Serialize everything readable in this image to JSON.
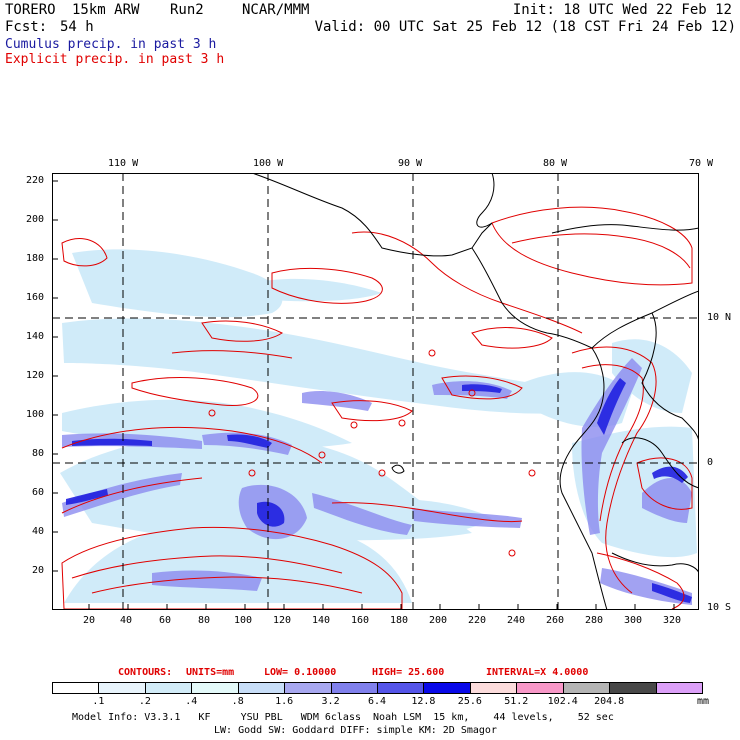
{
  "header": {
    "model_name": "TORERO",
    "resolution": "15km ARW",
    "run": "Run2",
    "org": "NCAR/MMM",
    "init": "Init: 18 UTC Wed 22 Feb 12",
    "fcst_label": "Fcst:",
    "fcst_value": "54 h",
    "valid": "Valid: 00 UTC Sat 25 Feb 12 (18 CST Fri 24 Feb 12)",
    "line_cumulus": "Cumulus precip. in past 3 h",
    "line_explicit": "Explicit precip. in past 3 h"
  },
  "colors": {
    "cumulus_text": "#1a1aa0",
    "explicit_text": "#e00000",
    "contour": "#e00000",
    "precip_light": "#c8e8f8",
    "precip_mid": "#8c8cf0",
    "precip_dark": "#2020e0"
  },
  "map": {
    "top_lon_labels": [
      "110 W",
      "100 W",
      "90 W",
      "80 W",
      "70 W"
    ],
    "right_lat_labels": [
      "10 N",
      "0",
      "10 S"
    ],
    "left_y_ticks": [
      "220",
      "200",
      "180",
      "160",
      "140",
      "120",
      "100",
      "80",
      "60",
      "40",
      "20"
    ],
    "bottom_x_ticks": [
      "20",
      "40",
      "60",
      "80",
      "100",
      "120",
      "140",
      "160",
      "180",
      "200",
      "220",
      "240",
      "260",
      "280",
      "300",
      "320"
    ]
  },
  "contour_info": {
    "contours": "CONTOURS:",
    "units": "UNITS=mm",
    "low": "LOW= 0.10000",
    "high": "HIGH= 25.600",
    "interval": "INTERVAL=X 4.0000"
  },
  "colorbar": {
    "colors": [
      "#ffffff",
      "#e8f4fc",
      "#d2ecf8",
      "#e4fafa",
      "#c8def8",
      "#a8a8f0",
      "#8080ec",
      "#5454e8",
      "#0808e8",
      "#fcdcdc",
      "#f898c8",
      "#b4b4b4",
      "#484848",
      "#dca0f8"
    ],
    "labels": [
      ".1",
      ".2",
      ".4",
      ".8",
      "1.6",
      "3.2",
      "6.4",
      "12.8",
      "25.6",
      "51.2",
      "102.4",
      "204.8"
    ],
    "unit": "mm"
  },
  "footer": {
    "line1": "Model Info: V3.3.1   KF     YSU PBL   WDM 6class  Noah LSM  15 km,    44 levels,    52 sec",
    "line2": "LW: Godd SW: Goddard DIFF: simple KM: 2D Smagor"
  }
}
